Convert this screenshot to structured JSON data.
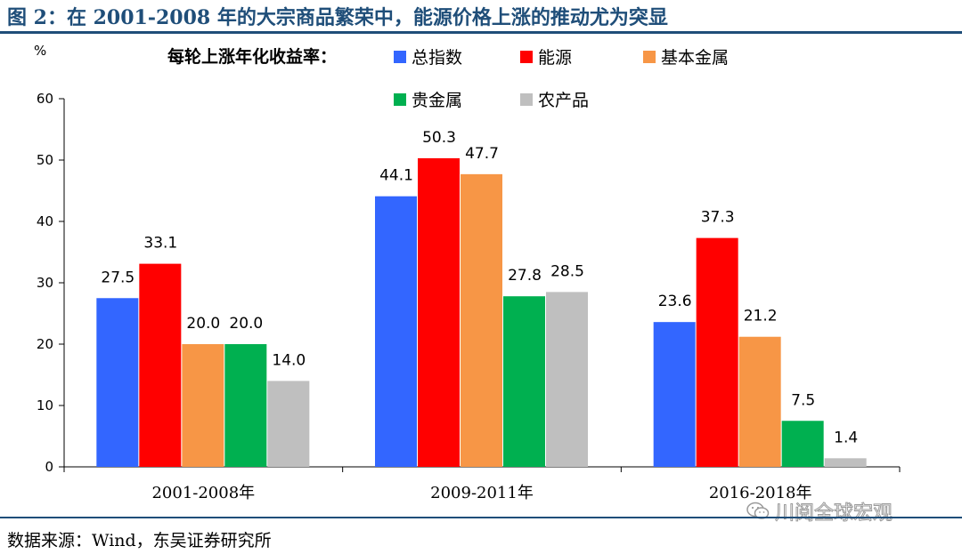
{
  "title": "图 2：在 2001-2008 年的大宗商品繁荣中，能源价格上涨的推动尤为突显",
  "source": "数据来源：Wind，东吴证券研究所",
  "watermark": "川阅全球宏观",
  "chart_data": {
    "type": "bar",
    "title": "",
    "legend_title": "每轮上涨年化收益率：",
    "ylabel": "%",
    "xlabel": "",
    "ylim": [
      0,
      60
    ],
    "yticks": [
      0,
      10,
      20,
      30,
      40,
      50,
      60
    ],
    "categories": [
      "2001-2008年",
      "2009-2011年",
      "2016-2018年"
    ],
    "series": [
      {
        "name": "总指数",
        "color": "#3366ff",
        "values": [
          27.5,
          44.1,
          23.6
        ]
      },
      {
        "name": "能源",
        "color": "#ff0000",
        "values": [
          33.1,
          50.3,
          37.3
        ]
      },
      {
        "name": "基本金属",
        "color": "#f79646",
        "values": [
          20.0,
          47.7,
          21.2
        ]
      },
      {
        "name": "贵金属",
        "color": "#00b050",
        "values": [
          20.0,
          27.8,
          7.5
        ]
      },
      {
        "name": "农产品",
        "color": "#bfbfbf",
        "values": [
          14.0,
          28.5,
          1.4
        ]
      }
    ],
    "legend_position": "top"
  }
}
